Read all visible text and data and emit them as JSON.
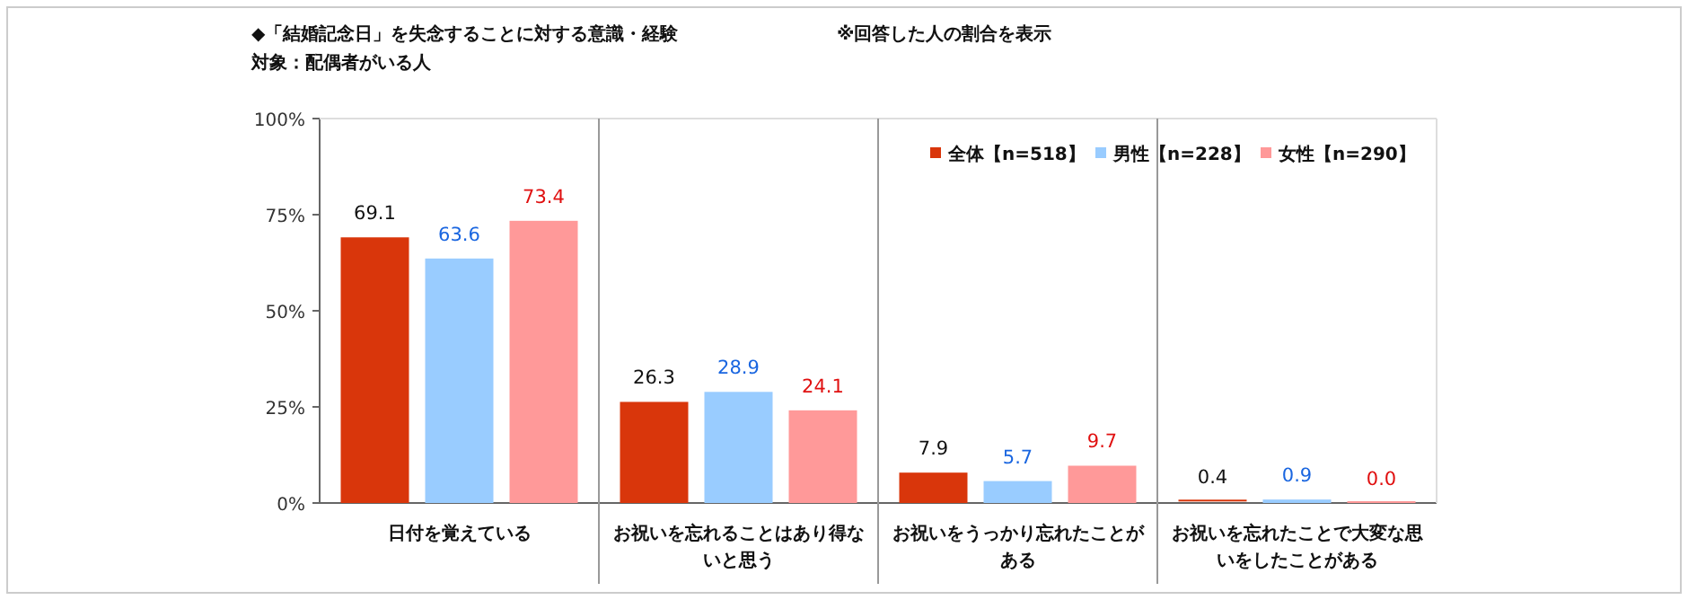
{
  "chart_data": {
    "type": "bar",
    "title": "◆「結婚記念日」を失念することに対する意識・経験",
    "subtitle": "対象：配偶者がいる人",
    "annotations": [
      "※回答した人の割合を表示"
    ],
    "categories": [
      "日付を覚えている",
      "お祝いを忘れることはあり得ないと思う",
      "お祝いをうっかり忘れたことがある",
      "お祝いを忘れたことで大変な思いをしたことがある"
    ],
    "series": [
      {
        "name": "全体【n=518】",
        "color": "#d9360b",
        "values": [
          69.1,
          26.3,
          7.9,
          0.4
        ],
        "value_labels": [
          "69.1",
          "26.3",
          "7.9",
          "0.4"
        ]
      },
      {
        "name": "男性【n=228】",
        "color": "#99ccff",
        "values": [
          63.6,
          28.9,
          5.7,
          0.9
        ],
        "value_labels": [
          "63.6",
          "28.9",
          "5.7",
          "0.9"
        ]
      },
      {
        "name": "女性【n=290】",
        "color": "#ff9999",
        "values": [
          73.4,
          24.1,
          9.7,
          0.0
        ],
        "value_labels": [
          "73.4",
          "24.1",
          "9.7",
          "0.0"
        ]
      }
    ],
    "ylim": [
      0,
      100
    ],
    "yticks": [
      {
        "value": 0,
        "label": "0%"
      },
      {
        "value": 25,
        "label": "25%"
      },
      {
        "value": 50,
        "label": "50%"
      },
      {
        "value": 75,
        "label": "75%"
      },
      {
        "value": 100,
        "label": "100%"
      }
    ],
    "legend": "top right",
    "grid": false
  }
}
